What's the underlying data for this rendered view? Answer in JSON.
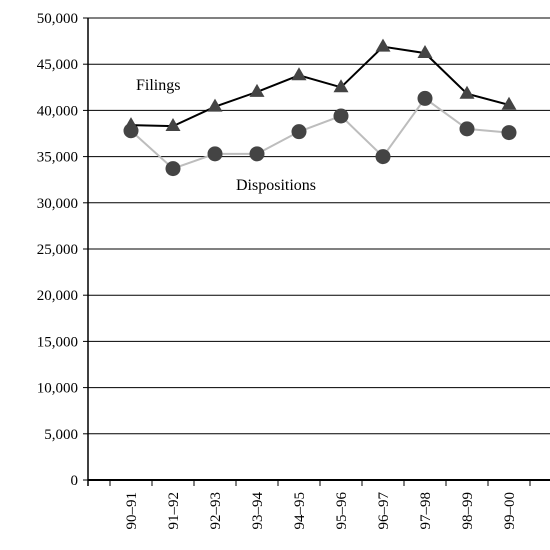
{
  "chart_data": {
    "type": "line",
    "title": "",
    "xlabel": "",
    "ylabel": "",
    "categories": [
      "90–91",
      "91–92",
      "92–93",
      "93–94",
      "94–95",
      "95–96",
      "96–97",
      "97–98",
      "98–99",
      "99–00"
    ],
    "ylim": [
      0,
      50000
    ],
    "yticks": [
      0,
      5000,
      10000,
      15000,
      20000,
      25000,
      30000,
      35000,
      40000,
      45000,
      50000
    ],
    "ytick_labels": [
      "0",
      "5,000",
      "10,000",
      "15,000",
      "20,000",
      "25,000",
      "30,000",
      "35,000",
      "40,000",
      "45,000",
      "50,000"
    ],
    "grid": "horizontal",
    "legend": "none",
    "series": [
      {
        "name": "Filings",
        "marker": "triangle",
        "color": "#000000",
        "values": [
          38400,
          38300,
          40400,
          42000,
          43800,
          42500,
          46900,
          46200,
          41800,
          40600
        ]
      },
      {
        "name": "Dispositions",
        "marker": "circle",
        "color": "#bdbdbd",
        "values": [
          37800,
          33700,
          35300,
          35300,
          37700,
          39400,
          35000,
          41300,
          38000,
          37600
        ]
      }
    ]
  }
}
